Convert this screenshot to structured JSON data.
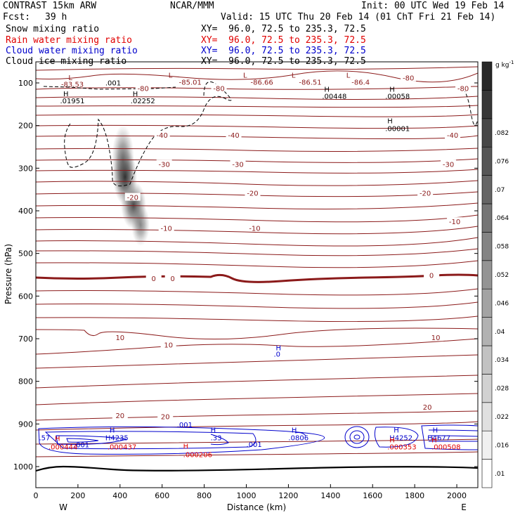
{
  "header": {
    "model": "CONTRAST 15km ARW",
    "org": "NCAR/MMM",
    "init": "Init: 00 UTC Wed 19 Feb 14",
    "fcst_label": "Fcst:",
    "fcst_value": "39 h",
    "valid": "Valid: 15 UTC Thu 20 Feb 14 (01 ChT Fri 21 Feb 14)"
  },
  "fields": [
    {
      "name": "Snow mixing ratio",
      "xy": "XY=  96.0, 72.5 to 235.3, 72.5",
      "color": "#000000"
    },
    {
      "name": "Rain water mixing ratio",
      "xy": "XY=  96.0, 72.5 to 235.3, 72.5",
      "color": "#e00000"
    },
    {
      "name": "Cloud water mixing ratio",
      "xy": "XY=  96.0, 72.5 to 235.3, 72.5",
      "color": "#0000cc"
    },
    {
      "name": "Cloud ice mixing ratio",
      "xy": "XY=  96.0, 72.5 to 235.3, 72.5",
      "color": "#000000"
    }
  ],
  "chart_data": {
    "type": "heatmap",
    "xlabel": "Distance (km)",
    "ylabel": "Pressure (hPa)",
    "xlim": [
      0,
      2100
    ],
    "ylim": [
      1050,
      60
    ],
    "xticks": [
      0,
      200,
      400,
      600,
      800,
      1000,
      1200,
      1400,
      1600,
      1800,
      2000
    ],
    "yticks": [
      100,
      200,
      300,
      400,
      500,
      600,
      700,
      800,
      900,
      1000
    ],
    "x_end_labels": {
      "left": "W",
      "right": "E"
    },
    "colorbar": {
      "unit": "g kg",
      "unit_exp": "-1",
      "ticks": [
        ".01",
        ".016",
        ".022",
        ".028",
        ".034",
        ".04",
        ".046",
        ".052",
        ".058",
        ".064",
        ".07",
        ".076",
        ".082"
      ]
    },
    "temperature_contours": {
      "color": "#8b1a1a",
      "labels": [
        {
          "text": "-80",
          "x": 1770,
          "p": 88
        },
        {
          "text": "-80",
          "x": 510,
          "p": 112
        },
        {
          "text": "-80",
          "x": 870,
          "p": 112
        },
        {
          "text": "-80",
          "x": 2030,
          "p": 112
        },
        {
          "text": "-40",
          "x": 600,
          "p": 222
        },
        {
          "text": "-40",
          "x": 940,
          "p": 222
        },
        {
          "text": "-40",
          "x": 1980,
          "p": 222
        },
        {
          "text": "-30",
          "x": 610,
          "p": 290
        },
        {
          "text": "-30",
          "x": 960,
          "p": 290
        },
        {
          "text": "-30",
          "x": 1960,
          "p": 290
        },
        {
          "text": "-20",
          "x": 460,
          "p": 368
        },
        {
          "text": "-20",
          "x": 1030,
          "p": 358
        },
        {
          "text": "-20",
          "x": 1850,
          "p": 358
        },
        {
          "text": "-10",
          "x": 620,
          "p": 440
        },
        {
          "text": "-10",
          "x": 1040,
          "p": 440
        },
        {
          "text": "-10",
          "x": 1990,
          "p": 425
        },
        {
          "text": "0",
          "x": 560,
          "p": 558
        },
        {
          "text": "0",
          "x": 650,
          "p": 558
        },
        {
          "text": "0",
          "x": 1880,
          "p": 551
        },
        {
          "text": "10",
          "x": 400,
          "p": 697
        },
        {
          "text": "10",
          "x": 630,
          "p": 714
        },
        {
          "text": "10",
          "x": 1900,
          "p": 697
        },
        {
          "text": "20",
          "x": 400,
          "p": 880
        },
        {
          "text": "20",
          "x": 615,
          "p": 882
        },
        {
          "text": "20",
          "x": 1860,
          "p": 860
        }
      ]
    },
    "annotations": [
      {
        "text": "L",
        "x": 155,
        "p": 93,
        "color": "#8b1a1a"
      },
      {
        "text": "-83.53",
        "x": 120,
        "p": 109,
        "color": "#8b1a1a"
      },
      {
        "text": ".001",
        "x": 330,
        "p": 106,
        "color": "#000000"
      },
      {
        "text": "L",
        "x": 630,
        "p": 88,
        "color": "#8b1a1a"
      },
      {
        "text": "-85.01",
        "x": 680,
        "p": 104,
        "color": "#8b1a1a"
      },
      {
        "text": "L",
        "x": 985,
        "p": 88,
        "color": "#8b1a1a"
      },
      {
        "text": "-86.66",
        "x": 1020,
        "p": 104,
        "color": "#8b1a1a"
      },
      {
        "text": "L",
        "x": 1215,
        "p": 88,
        "color": "#8b1a1a"
      },
      {
        "text": "-86.51",
        "x": 1250,
        "p": 104,
        "color": "#8b1a1a"
      },
      {
        "text": "L",
        "x": 1475,
        "p": 88,
        "color": "#8b1a1a"
      },
      {
        "text": "-86.4",
        "x": 1500,
        "p": 104,
        "color": "#8b1a1a"
      },
      {
        "text": "H",
        "x": 130,
        "p": 131,
        "color": "#000000"
      },
      {
        "text": ".01951",
        "x": 115,
        "p": 148,
        "color": "#000000"
      },
      {
        "text": "H",
        "x": 460,
        "p": 131,
        "color": "#000000"
      },
      {
        "text": ".02252",
        "x": 450,
        "p": 148,
        "color": "#000000"
      },
      {
        "text": "H",
        "x": 1370,
        "p": 121,
        "color": "#000000"
      },
      {
        "text": ".00448",
        "x": 1360,
        "p": 137,
        "color": "#000000"
      },
      {
        "text": "H",
        "x": 1680,
        "p": 121,
        "color": "#000000"
      },
      {
        "text": ".00058",
        "x": 1660,
        "p": 137,
        "color": "#000000"
      },
      {
        "text": "H",
        "x": 1670,
        "p": 195,
        "color": "#000000"
      },
      {
        "text": ".00001",
        "x": 1660,
        "p": 213,
        "color": "#000000"
      },
      {
        "text": "H",
        "x": 1140,
        "p": 727,
        "color": "#0000cc"
      },
      {
        "text": ".0",
        "x": 1130,
        "p": 742,
        "color": "#0000cc"
      },
      {
        "text": ".001",
        "x": 670,
        "p": 908,
        "color": "#0000cc"
      },
      {
        "text": ".001",
        "x": 180,
        "p": 955,
        "color": "#0000cc"
      },
      {
        "text": ".001",
        "x": 1000,
        "p": 954,
        "color": "#0000cc"
      },
      {
        "text": "H",
        "x": 350,
        "p": 920,
        "color": "#0000cc"
      },
      {
        "text": "H4235",
        "x": 330,
        "p": 938,
        "color": "#0000cc"
      },
      {
        "text": "H",
        "x": 830,
        "p": 920,
        "color": "#0000cc"
      },
      {
        "text": ".33",
        "x": 830,
        "p": 938,
        "color": "#0000cc"
      },
      {
        "text": "H",
        "x": 1215,
        "p": 920,
        "color": "#0000cc"
      },
      {
        "text": ".0806",
        "x": 1200,
        "p": 938,
        "color": "#0000cc"
      },
      {
        "text": "H",
        "x": 1700,
        "p": 920,
        "color": "#0000cc"
      },
      {
        "text": "H4252",
        "x": 1680,
        "p": 938,
        "color": "#0000cc"
      },
      {
        "text": "H",
        "x": 1885,
        "p": 920,
        "color": "#0000cc"
      },
      {
        "text": "H4677",
        "x": 1860,
        "p": 938,
        "color": "#0000cc"
      },
      {
        "text": ".57",
        "x": 15,
        "p": 938,
        "color": "#0000cc"
      },
      {
        "text": "H",
        "x": 90,
        "p": 940,
        "color": "#e00000"
      },
      {
        "text": ".000444",
        "x": 60,
        "p": 960,
        "color": "#e00000"
      },
      {
        "text": ".000437",
        "x": 340,
        "p": 960,
        "color": "#e00000"
      },
      {
        "text": "H",
        "x": 700,
        "p": 958,
        "color": "#e00000"
      },
      {
        "text": ".000206",
        "x": 700,
        "p": 978,
        "color": "#e00000"
      },
      {
        "text": "H",
        "x": 1680,
        "p": 943,
        "color": "#e00000"
      },
      {
        "text": ".000353",
        "x": 1670,
        "p": 960,
        "color": "#e00000"
      },
      {
        "text": "H",
        "x": 1880,
        "p": 943,
        "color": "#e00000"
      },
      {
        "text": ".000508",
        "x": 1880,
        "p": 960,
        "color": "#e00000"
      }
    ]
  }
}
